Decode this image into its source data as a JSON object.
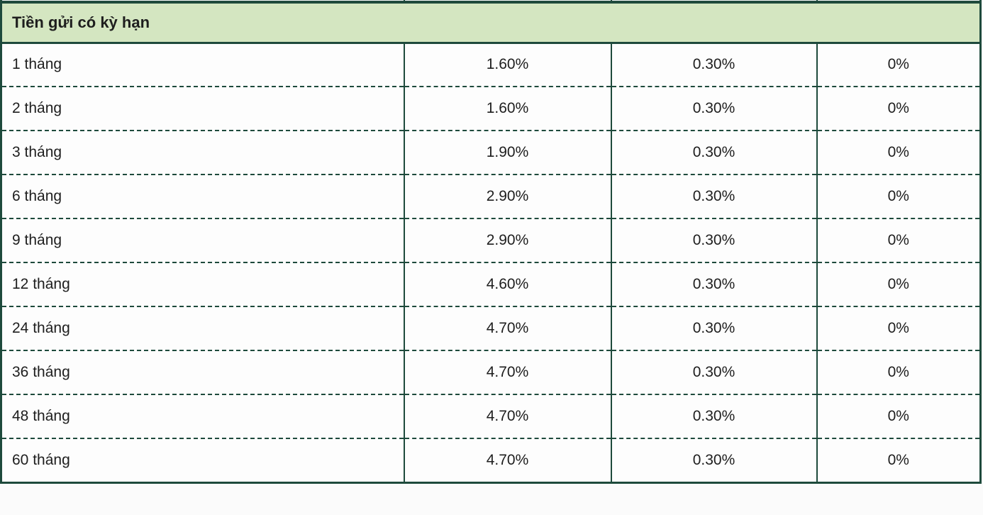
{
  "table": {
    "section_header": "Tiền gửi có kỳ hạn",
    "row_keys": [
      "term",
      "rate1",
      "rate2",
      "rate3"
    ],
    "rows": [
      {
        "term": "1 tháng",
        "rate1": "1.60%",
        "rate2": "0.30%",
        "rate3": "0%"
      },
      {
        "term": "2 tháng",
        "rate1": "1.60%",
        "rate2": "0.30%",
        "rate3": "0%"
      },
      {
        "term": "3 tháng",
        "rate1": "1.90%",
        "rate2": "0.30%",
        "rate3": "0%"
      },
      {
        "term": "6 tháng",
        "rate1": "2.90%",
        "rate2": "0.30%",
        "rate3": "0%"
      },
      {
        "term": "9 tháng",
        "rate1": "2.90%",
        "rate2": "0.30%",
        "rate3": "0%"
      },
      {
        "term": "12 tháng",
        "rate1": "4.60%",
        "rate2": "0.30%",
        "rate3": "0%"
      },
      {
        "term": "24 tháng",
        "rate1": "4.70%",
        "rate2": "0.30%",
        "rate3": "0%"
      },
      {
        "term": "36 tháng",
        "rate1": "4.70%",
        "rate2": "0.30%",
        "rate3": "0%"
      },
      {
        "term": "48 tháng",
        "rate1": "4.70%",
        "rate2": "0.30%",
        "rate3": "0%"
      },
      {
        "term": "60 tháng",
        "rate1": "4.70%",
        "rate2": "0.30%",
        "rate3": "0%"
      }
    ]
  },
  "colors": {
    "header_background": "#d4e6c1",
    "border": "#1e4a3c",
    "text": "#1e1e1e"
  }
}
